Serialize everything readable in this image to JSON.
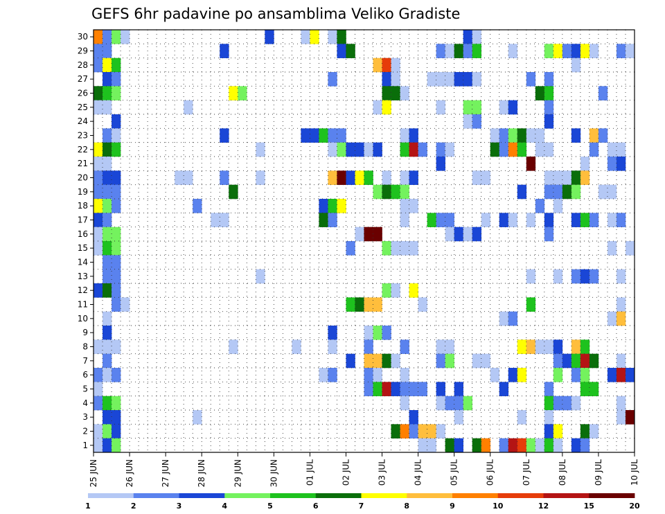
{
  "chart_data": {
    "type": "heatmap",
    "title": "GEFS 6hr padavine po ansamblima Veliko Gradiste",
    "y_ticks": [
      "1",
      "2",
      "3",
      "4",
      "5",
      "6",
      "7",
      "8",
      "9",
      "10",
      "11",
      "12",
      "13",
      "14",
      "15",
      "16",
      "17",
      "18",
      "19",
      "20",
      "21",
      "22",
      "23",
      "24",
      "25",
      "26",
      "27",
      "28",
      "29",
      "30"
    ],
    "x_ticks": [
      "25 JUN",
      "26 JUN",
      "27 JUN",
      "28 JUN",
      "29 JUN",
      "30 JUN",
      "01 JUL",
      "02 JUL",
      "03 JUL",
      "04 JUL",
      "05 JUL",
      "06 JUL",
      "07 JUL",
      "08 JUL",
      "09 JUL",
      "10 JUL"
    ],
    "x_step_per_day": 4,
    "grid": "dotted",
    "colorbar": {
      "position": "bottom",
      "levels": [
        "1",
        "2",
        "3",
        "4",
        "5",
        "6",
        "7",
        "8",
        "9",
        "10",
        "12",
        "15",
        "20"
      ],
      "colors": [
        "#b4c8f5",
        "#5a82ee",
        "#1a46d6",
        "#74f25e",
        "#1ec21e",
        "#0a6e0a",
        "#ffff00",
        "#ffbe3c",
        "#ff8000",
        "#e63c0a",
        "#b41414",
        "#6a0000"
      ]
    },
    "cells": [
      [
        30,
        0,
        8
      ],
      [
        30,
        1,
        1
      ],
      [
        30,
        2,
        3
      ],
      [
        30,
        3,
        0
      ],
      [
        30,
        19,
        2
      ],
      [
        30,
        23,
        0
      ],
      [
        30,
        24,
        6
      ],
      [
        30,
        26,
        0
      ],
      [
        30,
        27,
        5
      ],
      [
        30,
        41,
        2
      ],
      [
        30,
        42,
        0
      ],
      [
        29,
        0,
        1
      ],
      [
        29,
        1,
        1
      ],
      [
        29,
        14,
        2
      ],
      [
        29,
        27,
        2
      ],
      [
        29,
        28,
        5
      ],
      [
        29,
        38,
        1
      ],
      [
        29,
        39,
        0
      ],
      [
        29,
        40,
        5
      ],
      [
        29,
        41,
        1
      ],
      [
        29,
        42,
        4
      ],
      [
        29,
        46,
        0
      ],
      [
        29,
        50,
        3
      ],
      [
        29,
        51,
        6
      ],
      [
        29,
        52,
        1
      ],
      [
        29,
        53,
        2
      ],
      [
        29,
        54,
        6
      ],
      [
        29,
        55,
        0
      ],
      [
        29,
        58,
        1
      ],
      [
        29,
        59,
        0
      ],
      [
        28,
        0,
        1
      ],
      [
        28,
        1,
        6
      ],
      [
        28,
        2,
        4
      ],
      [
        28,
        31,
        7
      ],
      [
        28,
        32,
        9
      ],
      [
        28,
        33,
        0
      ],
      [
        28,
        53,
        0
      ],
      [
        27,
        1,
        2
      ],
      [
        27,
        2,
        1
      ],
      [
        27,
        26,
        1
      ],
      [
        27,
        32,
        2
      ],
      [
        27,
        33,
        0
      ],
      [
        27,
        37,
        0
      ],
      [
        27,
        38,
        0
      ],
      [
        27,
        39,
        0
      ],
      [
        27,
        40,
        2
      ],
      [
        27,
        41,
        2
      ],
      [
        27,
        42,
        0
      ],
      [
        27,
        48,
        1
      ],
      [
        27,
        50,
        1
      ],
      [
        26,
        0,
        5
      ],
      [
        26,
        1,
        4
      ],
      [
        26,
        2,
        3
      ],
      [
        26,
        15,
        6
      ],
      [
        26,
        16,
        3
      ],
      [
        26,
        32,
        5
      ],
      [
        26,
        33,
        5
      ],
      [
        26,
        34,
        0
      ],
      [
        26,
        49,
        5
      ],
      [
        26,
        50,
        4
      ],
      [
        26,
        56,
        1
      ],
      [
        25,
        0,
        0
      ],
      [
        25,
        1,
        0
      ],
      [
        25,
        10,
        0
      ],
      [
        25,
        31,
        0
      ],
      [
        25,
        32,
        6
      ],
      [
        25,
        38,
        0
      ],
      [
        25,
        41,
        3
      ],
      [
        25,
        42,
        3
      ],
      [
        25,
        45,
        0
      ],
      [
        25,
        46,
        2
      ],
      [
        25,
        50,
        1
      ],
      [
        24,
        2,
        2
      ],
      [
        24,
        41,
        0
      ],
      [
        24,
        42,
        1
      ],
      [
        24,
        50,
        2
      ],
      [
        23,
        1,
        1
      ],
      [
        23,
        2,
        0
      ],
      [
        23,
        14,
        2
      ],
      [
        23,
        23,
        2
      ],
      [
        23,
        24,
        2
      ],
      [
        23,
        25,
        4
      ],
      [
        23,
        26,
        1
      ],
      [
        23,
        27,
        1
      ],
      [
        23,
        34,
        0
      ],
      [
        23,
        35,
        2
      ],
      [
        23,
        44,
        0
      ],
      [
        23,
        45,
        1
      ],
      [
        23,
        46,
        3
      ],
      [
        23,
        47,
        5
      ],
      [
        23,
        48,
        0
      ],
      [
        23,
        49,
        0
      ],
      [
        23,
        53,
        2
      ],
      [
        23,
        55,
        7
      ],
      [
        23,
        56,
        1
      ],
      [
        22,
        0,
        6
      ],
      [
        22,
        1,
        5
      ],
      [
        22,
        2,
        4
      ],
      [
        22,
        18,
        0
      ],
      [
        22,
        26,
        0
      ],
      [
        22,
        27,
        3
      ],
      [
        22,
        28,
        2
      ],
      [
        22,
        29,
        2
      ],
      [
        22,
        30,
        0
      ],
      [
        22,
        31,
        2
      ],
      [
        22,
        34,
        4
      ],
      [
        22,
        35,
        10
      ],
      [
        22,
        36,
        1
      ],
      [
        22,
        38,
        1
      ],
      [
        22,
        39,
        0
      ],
      [
        22,
        44,
        5
      ],
      [
        22,
        45,
        1
      ],
      [
        22,
        46,
        8
      ],
      [
        22,
        47,
        4
      ],
      [
        22,
        49,
        0
      ],
      [
        22,
        50,
        0
      ],
      [
        22,
        55,
        1
      ],
      [
        22,
        57,
        0
      ],
      [
        22,
        58,
        0
      ],
      [
        21,
        0,
        0
      ],
      [
        21,
        1,
        0
      ],
      [
        21,
        38,
        2
      ],
      [
        21,
        48,
        11
      ],
      [
        21,
        54,
        0
      ],
      [
        21,
        57,
        1
      ],
      [
        21,
        58,
        2
      ],
      [
        20,
        0,
        1
      ],
      [
        20,
        1,
        2
      ],
      [
        20,
        2,
        2
      ],
      [
        20,
        9,
        0
      ],
      [
        20,
        10,
        0
      ],
      [
        20,
        14,
        1
      ],
      [
        20,
        18,
        0
      ],
      [
        20,
        26,
        7
      ],
      [
        20,
        27,
        11
      ],
      [
        20,
        28,
        2
      ],
      [
        20,
        29,
        6
      ],
      [
        20,
        30,
        4
      ],
      [
        20,
        32,
        0
      ],
      [
        20,
        34,
        0
      ],
      [
        20,
        35,
        2
      ],
      [
        20,
        42,
        0
      ],
      [
        20,
        43,
        0
      ],
      [
        20,
        50,
        0
      ],
      [
        20,
        51,
        0
      ],
      [
        20,
        52,
        0
      ],
      [
        20,
        53,
        5
      ],
      [
        20,
        54,
        7
      ],
      [
        19,
        0,
        1
      ],
      [
        19,
        1,
        1
      ],
      [
        19,
        2,
        1
      ],
      [
        19,
        15,
        5
      ],
      [
        19,
        31,
        3
      ],
      [
        19,
        32,
        5
      ],
      [
        19,
        33,
        4
      ],
      [
        19,
        34,
        3
      ],
      [
        19,
        47,
        2
      ],
      [
        19,
        50,
        1
      ],
      [
        19,
        51,
        1
      ],
      [
        19,
        52,
        5
      ],
      [
        19,
        53,
        3
      ],
      [
        19,
        56,
        0
      ],
      [
        19,
        57,
        0
      ],
      [
        18,
        0,
        6
      ],
      [
        18,
        1,
        3
      ],
      [
        18,
        2,
        1
      ],
      [
        18,
        11,
        1
      ],
      [
        18,
        25,
        2
      ],
      [
        18,
        26,
        4
      ],
      [
        18,
        27,
        6
      ],
      [
        18,
        34,
        0
      ],
      [
        18,
        35,
        0
      ],
      [
        18,
        49,
        1
      ],
      [
        18,
        51,
        0
      ],
      [
        17,
        0,
        2
      ],
      [
        17,
        1,
        1
      ],
      [
        17,
        13,
        0
      ],
      [
        17,
        14,
        0
      ],
      [
        17,
        25,
        5
      ],
      [
        17,
        26,
        1
      ],
      [
        17,
        34,
        0
      ],
      [
        17,
        37,
        4
      ],
      [
        17,
        38,
        1
      ],
      [
        17,
        39,
        1
      ],
      [
        17,
        43,
        0
      ],
      [
        17,
        45,
        2
      ],
      [
        17,
        46,
        0
      ],
      [
        17,
        48,
        0
      ],
      [
        17,
        50,
        2
      ],
      [
        17,
        53,
        2
      ],
      [
        17,
        54,
        4
      ],
      [
        17,
        55,
        1
      ],
      [
        17,
        57,
        0
      ],
      [
        17,
        58,
        1
      ],
      [
        16,
        0,
        0
      ],
      [
        16,
        1,
        3
      ],
      [
        16,
        2,
        3
      ],
      [
        16,
        29,
        0
      ],
      [
        16,
        30,
        11
      ],
      [
        16,
        31,
        11
      ],
      [
        16,
        39,
        0
      ],
      [
        16,
        40,
        2
      ],
      [
        16,
        41,
        0
      ],
      [
        16,
        42,
        2
      ],
      [
        16,
        50,
        1
      ],
      [
        15,
        0,
        0
      ],
      [
        15,
        1,
        4
      ],
      [
        15,
        2,
        3
      ],
      [
        15,
        28,
        1
      ],
      [
        15,
        32,
        3
      ],
      [
        15,
        33,
        0
      ],
      [
        15,
        34,
        0
      ],
      [
        15,
        35,
        0
      ],
      [
        15,
        57,
        0
      ],
      [
        15,
        59,
        0
      ],
      [
        14,
        1,
        1
      ],
      [
        14,
        2,
        1
      ],
      [
        13,
        1,
        1
      ],
      [
        13,
        2,
        1
      ],
      [
        13,
        18,
        0
      ],
      [
        13,
        48,
        0
      ],
      [
        13,
        51,
        0
      ],
      [
        13,
        53,
        1
      ],
      [
        13,
        54,
        2
      ],
      [
        13,
        55,
        1
      ],
      [
        13,
        58,
        0
      ],
      [
        12,
        0,
        2
      ],
      [
        12,
        1,
        5
      ],
      [
        12,
        2,
        1
      ],
      [
        12,
        32,
        3
      ],
      [
        12,
        33,
        0
      ],
      [
        12,
        35,
        6
      ],
      [
        11,
        2,
        1
      ],
      [
        11,
        3,
        0
      ],
      [
        11,
        28,
        4
      ],
      [
        11,
        29,
        5
      ],
      [
        11,
        30,
        7
      ],
      [
        11,
        31,
        7
      ],
      [
        11,
        36,
        0
      ],
      [
        11,
        48,
        4
      ],
      [
        11,
        58,
        0
      ],
      [
        10,
        1,
        0
      ],
      [
        10,
        45,
        0
      ],
      [
        10,
        46,
        1
      ],
      [
        10,
        57,
        0
      ],
      [
        10,
        58,
        7
      ],
      [
        9,
        1,
        2
      ],
      [
        9,
        26,
        2
      ],
      [
        9,
        30,
        0
      ],
      [
        9,
        31,
        3
      ],
      [
        9,
        32,
        1
      ],
      [
        8,
        0,
        0
      ],
      [
        8,
        1,
        0
      ],
      [
        8,
        2,
        0
      ],
      [
        8,
        15,
        0
      ],
      [
        8,
        22,
        0
      ],
      [
        8,
        26,
        0
      ],
      [
        8,
        30,
        1
      ],
      [
        8,
        34,
        1
      ],
      [
        8,
        38,
        0
      ],
      [
        8,
        39,
        0
      ],
      [
        8,
        47,
        6
      ],
      [
        8,
        48,
        7
      ],
      [
        8,
        49,
        0
      ],
      [
        8,
        50,
        0
      ],
      [
        8,
        51,
        2
      ],
      [
        8,
        53,
        7
      ],
      [
        8,
        54,
        4
      ],
      [
        7,
        1,
        1
      ],
      [
        7,
        28,
        2
      ],
      [
        7,
        30,
        7
      ],
      [
        7,
        31,
        7
      ],
      [
        7,
        32,
        5
      ],
      [
        7,
        33,
        0
      ],
      [
        7,
        38,
        1
      ],
      [
        7,
        39,
        3
      ],
      [
        7,
        42,
        0
      ],
      [
        7,
        43,
        0
      ],
      [
        7,
        51,
        1
      ],
      [
        7,
        52,
        2
      ],
      [
        7,
        53,
        4
      ],
      [
        7,
        54,
        10
      ],
      [
        7,
        55,
        5
      ],
      [
        7,
        58,
        0
      ],
      [
        6,
        0,
        1
      ],
      [
        6,
        1,
        0
      ],
      [
        6,
        2,
        1
      ],
      [
        6,
        25,
        0
      ],
      [
        6,
        26,
        1
      ],
      [
        6,
        30,
        1
      ],
      [
        6,
        31,
        0
      ],
      [
        6,
        34,
        0
      ],
      [
        6,
        44,
        0
      ],
      [
        6,
        46,
        2
      ],
      [
        6,
        47,
        6
      ],
      [
        6,
        51,
        3
      ],
      [
        6,
        53,
        1
      ],
      [
        6,
        54,
        3
      ],
      [
        6,
        57,
        2
      ],
      [
        6,
        58,
        10
      ],
      [
        6,
        59,
        2
      ],
      [
        5,
        0,
        0
      ],
      [
        5,
        30,
        1
      ],
      [
        5,
        31,
        4
      ],
      [
        5,
        32,
        10
      ],
      [
        5,
        33,
        2
      ],
      [
        5,
        34,
        1
      ],
      [
        5,
        35,
        1
      ],
      [
        5,
        36,
        1
      ],
      [
        5,
        38,
        2
      ],
      [
        5,
        40,
        2
      ],
      [
        5,
        45,
        2
      ],
      [
        5,
        50,
        1
      ],
      [
        5,
        54,
        4
      ],
      [
        5,
        55,
        4
      ],
      [
        4,
        0,
        1
      ],
      [
        4,
        1,
        4
      ],
      [
        4,
        2,
        3
      ],
      [
        4,
        34,
        0
      ],
      [
        4,
        38,
        0
      ],
      [
        4,
        39,
        1
      ],
      [
        4,
        40,
        1
      ],
      [
        4,
        41,
        3
      ],
      [
        4,
        50,
        4
      ],
      [
        4,
        51,
        1
      ],
      [
        4,
        52,
        1
      ],
      [
        4,
        53,
        0
      ],
      [
        4,
        58,
        0
      ],
      [
        3,
        1,
        2
      ],
      [
        3,
        2,
        2
      ],
      [
        3,
        11,
        0
      ],
      [
        3,
        35,
        2
      ],
      [
        3,
        40,
        0
      ],
      [
        3,
        47,
        0
      ],
      [
        3,
        50,
        0
      ],
      [
        3,
        58,
        0
      ],
      [
        3,
        59,
        11
      ],
      [
        2,
        0,
        0
      ],
      [
        2,
        1,
        3
      ],
      [
        2,
        2,
        2
      ],
      [
        2,
        33,
        5
      ],
      [
        2,
        34,
        8
      ],
      [
        2,
        35,
        1
      ],
      [
        2,
        36,
        7
      ],
      [
        2,
        37,
        7
      ],
      [
        2,
        38,
        0
      ],
      [
        2,
        50,
        2
      ],
      [
        2,
        51,
        6
      ],
      [
        2,
        54,
        5
      ],
      [
        2,
        55,
        0
      ],
      [
        1,
        0,
        0
      ],
      [
        1,
        1,
        2
      ],
      [
        1,
        2,
        3
      ],
      [
        1,
        36,
        0
      ],
      [
        1,
        37,
        0
      ],
      [
        1,
        39,
        5
      ],
      [
        1,
        40,
        2
      ],
      [
        1,
        42,
        5
      ],
      [
        1,
        43,
        8
      ],
      [
        1,
        45,
        1
      ],
      [
        1,
        46,
        10
      ],
      [
        1,
        47,
        9
      ],
      [
        1,
        48,
        3
      ],
      [
        1,
        49,
        0
      ],
      [
        1,
        50,
        4
      ],
      [
        1,
        51,
        0
      ],
      [
        1,
        53,
        2
      ],
      [
        1,
        54,
        1
      ]
    ]
  }
}
